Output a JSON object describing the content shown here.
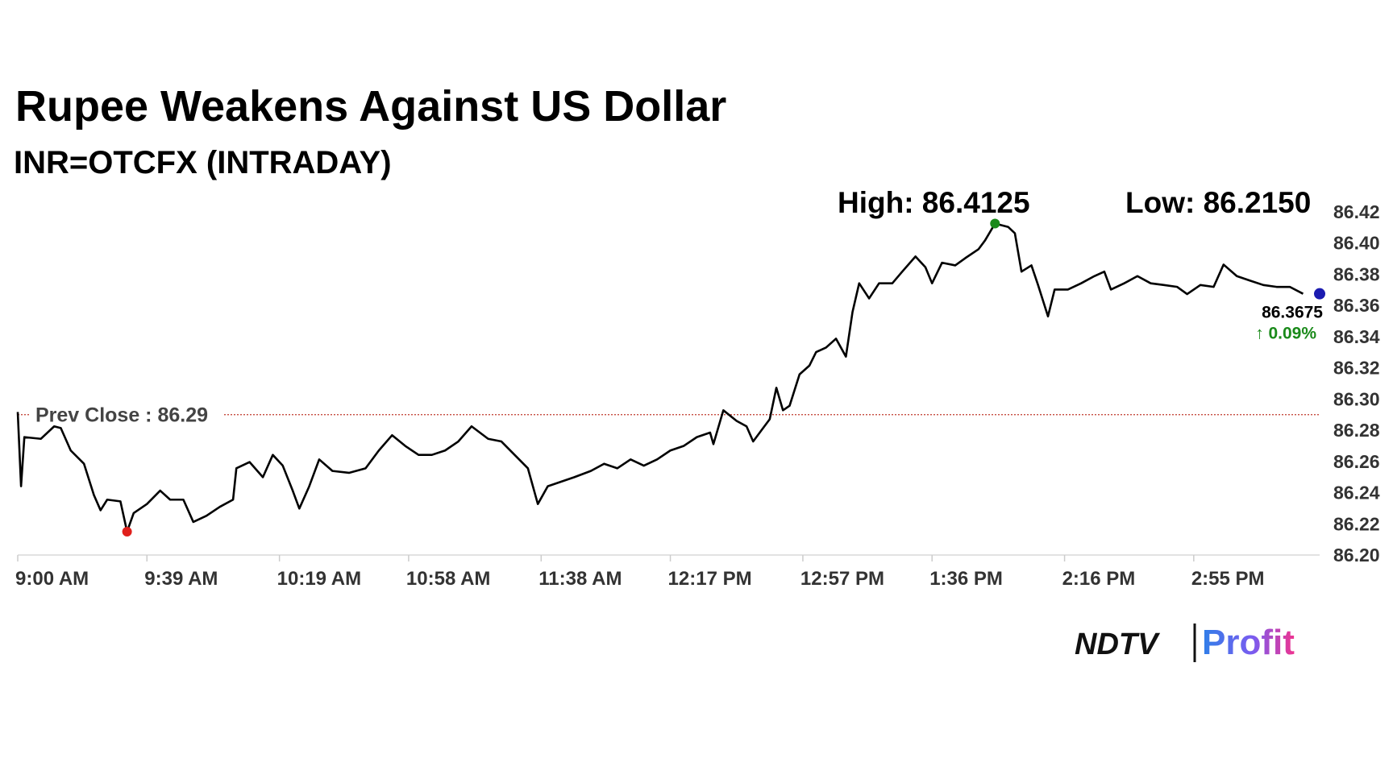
{
  "chart_data": {
    "type": "line",
    "title": "Rupee Weakens Against US Dollar",
    "subtitle": "INR=OTCFX (INTRADAY)",
    "high": {
      "label": "High: 86.4125",
      "value": 86.4125,
      "x": 835,
      "color": "#1a8a1a"
    },
    "low": {
      "label": "Low: 86.2150",
      "value": 86.215,
      "x": 573,
      "color": "#e0201c"
    },
    "prev_close": {
      "label": "Prev Close : 86.29",
      "value": 86.29,
      "color": "#c0392b"
    },
    "last": {
      "value": 86.3675,
      "change": "↑ 0.09%",
      "color": "#1b1bb0",
      "change_color": "#1a8a1a"
    },
    "series": [
      {
        "name": "INR=OTCFX",
        "color": "#000000",
        "x": [
          540,
          541,
          542,
          547,
          551,
          553,
          556,
          560,
          563,
          565,
          567,
          571,
          573,
          575,
          579,
          583,
          586,
          590,
          593,
          597,
          601,
          605,
          606,
          610,
          614,
          617,
          620,
          623,
          625,
          628,
          631,
          635,
          640,
          645,
          649,
          653,
          657,
          661,
          665,
          669,
          673,
          677,
          682,
          686,
          690,
          694,
          697,
          700,
          704,
          708,
          713,
          717,
          721,
          725,
          729,
          733,
          737,
          741,
          745,
          749,
          750,
          753,
          757,
          760,
          762,
          765,
          767,
          769,
          771,
          773,
          776,
          779,
          781,
          784,
          787,
          790,
          792,
          794,
          797,
          800,
          804,
          807,
          811,
          814,
          816,
          819,
          823,
          826,
          830,
          832,
          835,
          839,
          841,
          843,
          846,
          848,
          851,
          853,
          857,
          861,
          865,
          868,
          870,
          874,
          878,
          882,
          886,
          890,
          893,
          897,
          901,
          904,
          908,
          912,
          916,
          920,
          924,
          928
        ],
        "values": [
          86.2917,
          86.2441,
          86.2756,
          86.2745,
          86.2825,
          86.2814,
          86.267,
          86.2585,
          86.2384,
          86.2287,
          86.2355,
          86.2344,
          86.215,
          86.2269,
          86.2327,
          86.2413,
          86.2355,
          86.2355,
          86.2212,
          86.2252,
          86.2309,
          86.2355,
          86.2556,
          86.2596,
          86.2499,
          86.2642,
          86.2573,
          86.2413,
          86.2298,
          86.2441,
          86.2613,
          86.2539,
          86.2527,
          86.2556,
          86.267,
          86.2768,
          86.2699,
          86.2642,
          86.2642,
          86.267,
          86.2728,
          86.2825,
          86.2745,
          86.2728,
          86.2642,
          86.2556,
          86.2327,
          86.2441,
          86.247,
          86.2499,
          86.2539,
          86.2585,
          86.2556,
          86.2613,
          86.2573,
          86.2613,
          86.267,
          86.2699,
          86.2756,
          86.2785,
          86.2711,
          86.2928,
          86.286,
          86.2825,
          86.2728,
          86.2814,
          86.2871,
          86.3072,
          86.2928,
          86.2957,
          86.3158,
          86.3215,
          86.3301,
          86.333,
          86.3387,
          86.3272,
          86.3559,
          86.3742,
          86.3645,
          86.3742,
          86.3742,
          86.3817,
          86.3914,
          86.3845,
          86.3742,
          86.3874,
          86.3857,
          86.3903,
          86.396,
          86.4017,
          86.4125,
          86.4103,
          86.4063,
          86.3817,
          86.3857,
          86.3731,
          86.353,
          86.3702,
          86.3702,
          86.3742,
          86.3788,
          86.3817,
          86.3702,
          86.3742,
          86.3788,
          86.3742,
          86.3731,
          86.3719,
          86.3673,
          86.3731,
          86.3719,
          86.3862,
          86.3788,
          86.3759,
          86.3731,
          86.3719,
          86.3719,
          86.3675
        ]
      }
    ],
    "xlim": [
      540,
      933
    ],
    "xticks": [
      {
        "value": 540,
        "label": "9:00 AM"
      },
      {
        "value": 579,
        "label": "9:39 AM"
      },
      {
        "value": 619,
        "label": "10:19 AM"
      },
      {
        "value": 658,
        "label": "10:58 AM"
      },
      {
        "value": 698,
        "label": "11:38 AM"
      },
      {
        "value": 737,
        "label": "12:17 PM"
      },
      {
        "value": 777,
        "label": "12:57 PM"
      },
      {
        "value": 816,
        "label": "1:36 PM"
      },
      {
        "value": 856,
        "label": "2:16 PM"
      },
      {
        "value": 895,
        "label": "2:55 PM"
      }
    ],
    "ylim": [
      86.2,
      86.42
    ],
    "yticks": [
      {
        "value": 86.2,
        "label": "86.20"
      },
      86.22,
      86.24,
      86.26,
      86.28,
      {
        "value": 86.3,
        "label": "86.30"
      },
      86.32,
      86.34,
      86.36,
      86.38,
      {
        "value": 86.4,
        "label": "86.40"
      },
      86.42
    ],
    "grid": false
  },
  "logo": {
    "brand": "NDTV",
    "product": "Profit"
  }
}
